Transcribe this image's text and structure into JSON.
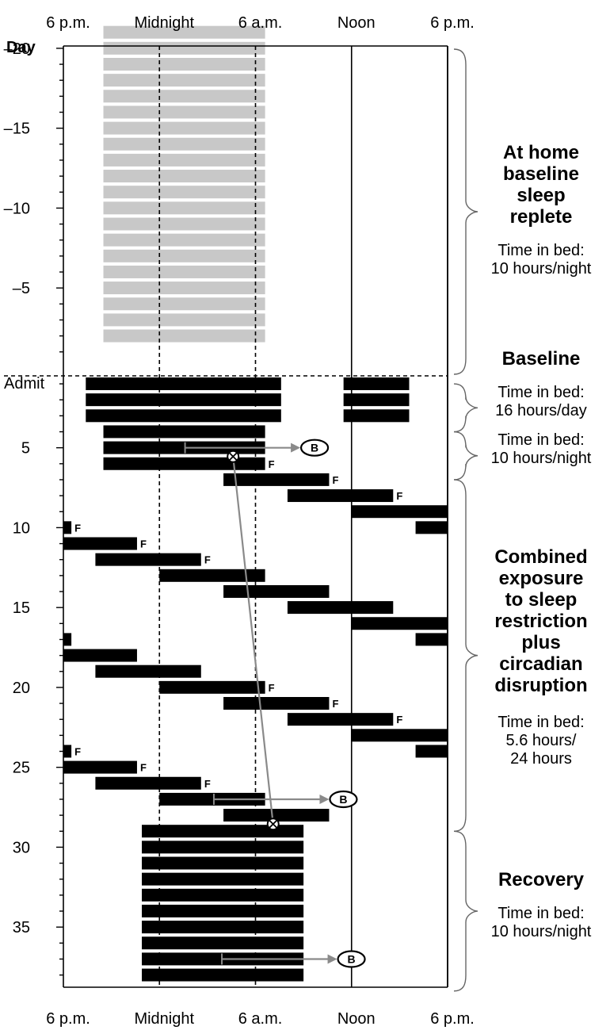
{
  "chart_data": {
    "type": "raster",
    "x_axis": {
      "unit": "hours relative to 6 p.m.",
      "range": [
        0,
        24
      ],
      "tick_values": [
        0,
        6,
        12,
        18,
        24
      ],
      "tick_labels": [
        "6 p.m.",
        "Midnight",
        "6 a.m.",
        "Noon",
        "6 p.m."
      ]
    },
    "y_axis": {
      "label": "Day",
      "range": [
        -22,
        38
      ],
      "tick_values": [
        -20,
        -15,
        -10,
        -5,
        5,
        10,
        15,
        20,
        25,
        30,
        35
      ],
      "tick_labels": [
        "–20",
        "–15",
        "–10",
        "–5",
        "5",
        "10",
        "15",
        "20",
        "25",
        "30",
        "35"
      ],
      "admit_label": "Admit",
      "admit_day": 1
    },
    "vertical_grid_dashed": [
      6,
      12
    ],
    "vertical_grid_solid": [
      18,
      24
    ],
    "admit_line_dashed": true,
    "home_sleep": {
      "days": [
        -21,
        -2
      ],
      "start": 2.5,
      "end": 12.6,
      "color": "#c8c8c8"
    },
    "sleep_bars": [
      [
        1,
        1.4,
        13.6
      ],
      [
        1,
        17.5,
        21.6
      ],
      [
        2,
        1.4,
        13.6
      ],
      [
        2,
        17.5,
        21.6
      ],
      [
        3,
        1.4,
        13.6
      ],
      [
        3,
        17.5,
        21.6
      ],
      [
        4,
        2.5,
        12.6
      ],
      [
        5,
        2.5,
        12.6
      ],
      [
        6,
        2.5,
        12.6
      ],
      [
        7,
        10,
        16.6
      ],
      [
        8,
        14,
        20.6
      ],
      [
        9,
        18,
        24
      ],
      [
        10,
        0,
        0.5
      ],
      [
        10,
        22,
        24
      ],
      [
        11,
        0,
        4.6
      ],
      [
        12,
        2,
        8.6
      ],
      [
        13,
        6,
        12.6
      ],
      [
        14,
        10,
        16.6
      ],
      [
        15,
        14,
        20.6
      ],
      [
        16,
        18,
        24
      ],
      [
        17,
        0,
        0.5
      ],
      [
        17,
        22,
        24
      ],
      [
        18,
        0,
        4.6
      ],
      [
        19,
        2,
        8.6
      ],
      [
        20,
        6,
        12.6
      ],
      [
        21,
        10,
        16.6
      ],
      [
        22,
        14,
        20.6
      ],
      [
        23,
        18,
        24
      ],
      [
        24,
        0,
        0.5
      ],
      [
        24,
        22,
        24
      ],
      [
        25,
        0,
        4.6
      ],
      [
        26,
        2,
        8.6
      ],
      [
        27,
        6,
        12.6
      ],
      [
        28,
        10,
        16.6
      ],
      [
        29,
        4.9,
        15
      ],
      [
        30,
        4.9,
        15
      ],
      [
        31,
        4.9,
        15
      ],
      [
        32,
        4.9,
        15
      ],
      [
        33,
        4.9,
        15
      ],
      [
        34,
        4.9,
        15
      ],
      [
        35,
        4.9,
        15
      ],
      [
        36,
        4.9,
        15
      ],
      [
        37,
        4.9,
        15
      ],
      [
        38,
        4.9,
        15
      ]
    ],
    "f_marker_label": "F",
    "f_markers": [
      [
        6,
        12.7
      ],
      [
        7,
        16.7
      ],
      [
        8,
        20.7
      ],
      [
        10,
        0.6
      ],
      [
        11,
        4.7
      ],
      [
        12,
        8.7
      ],
      [
        20,
        12.7
      ],
      [
        21,
        16.7
      ],
      [
        22,
        20.7
      ],
      [
        24,
        0.6
      ],
      [
        25,
        4.7
      ],
      [
        26,
        8.7
      ]
    ],
    "b_marker_label": "B",
    "b_markers": [
      {
        "day": 5,
        "from": 7.6,
        "to": 14.8
      },
      {
        "day": 27,
        "from": 9.4,
        "to": 16.6
      },
      {
        "day": 37,
        "from": 9.9,
        "to": 17.1
      }
    ],
    "phase_line": {
      "start": [
        6,
        10.6
      ],
      "end": [
        29,
        13.1
      ]
    },
    "sections": [
      {
        "title": [
          "At home",
          "baseline",
          "sleep",
          "replete"
        ],
        "note": [
          "Time in bed:",
          "10 hours/night"
        ],
        "span": [
          -22,
          0
        ]
      },
      {
        "title": [
          "Baseline"
        ],
        "note": [],
        "span": []
      },
      {
        "title": [],
        "note": [
          "Time in bed:",
          "16 hours/day"
        ],
        "span": [
          0.5,
          3.5
        ]
      },
      {
        "title": [],
        "note": [
          "Time in bed:",
          "10 hours/night"
        ],
        "span": [
          3.5,
          6.5
        ]
      },
      {
        "title": [
          "Combined",
          "exposure",
          "to sleep",
          "restriction",
          "plus",
          "circadian",
          "disruption"
        ],
        "note": [
          "Time in bed:",
          "5.6 hours/",
          "24 hours"
        ],
        "span": [
          6.5,
          28.5
        ]
      },
      {
        "title": [
          "Recovery"
        ],
        "note": [
          "Time in bed:",
          "10 hours/night"
        ],
        "span": [
          28.5,
          38.5
        ]
      }
    ]
  }
}
